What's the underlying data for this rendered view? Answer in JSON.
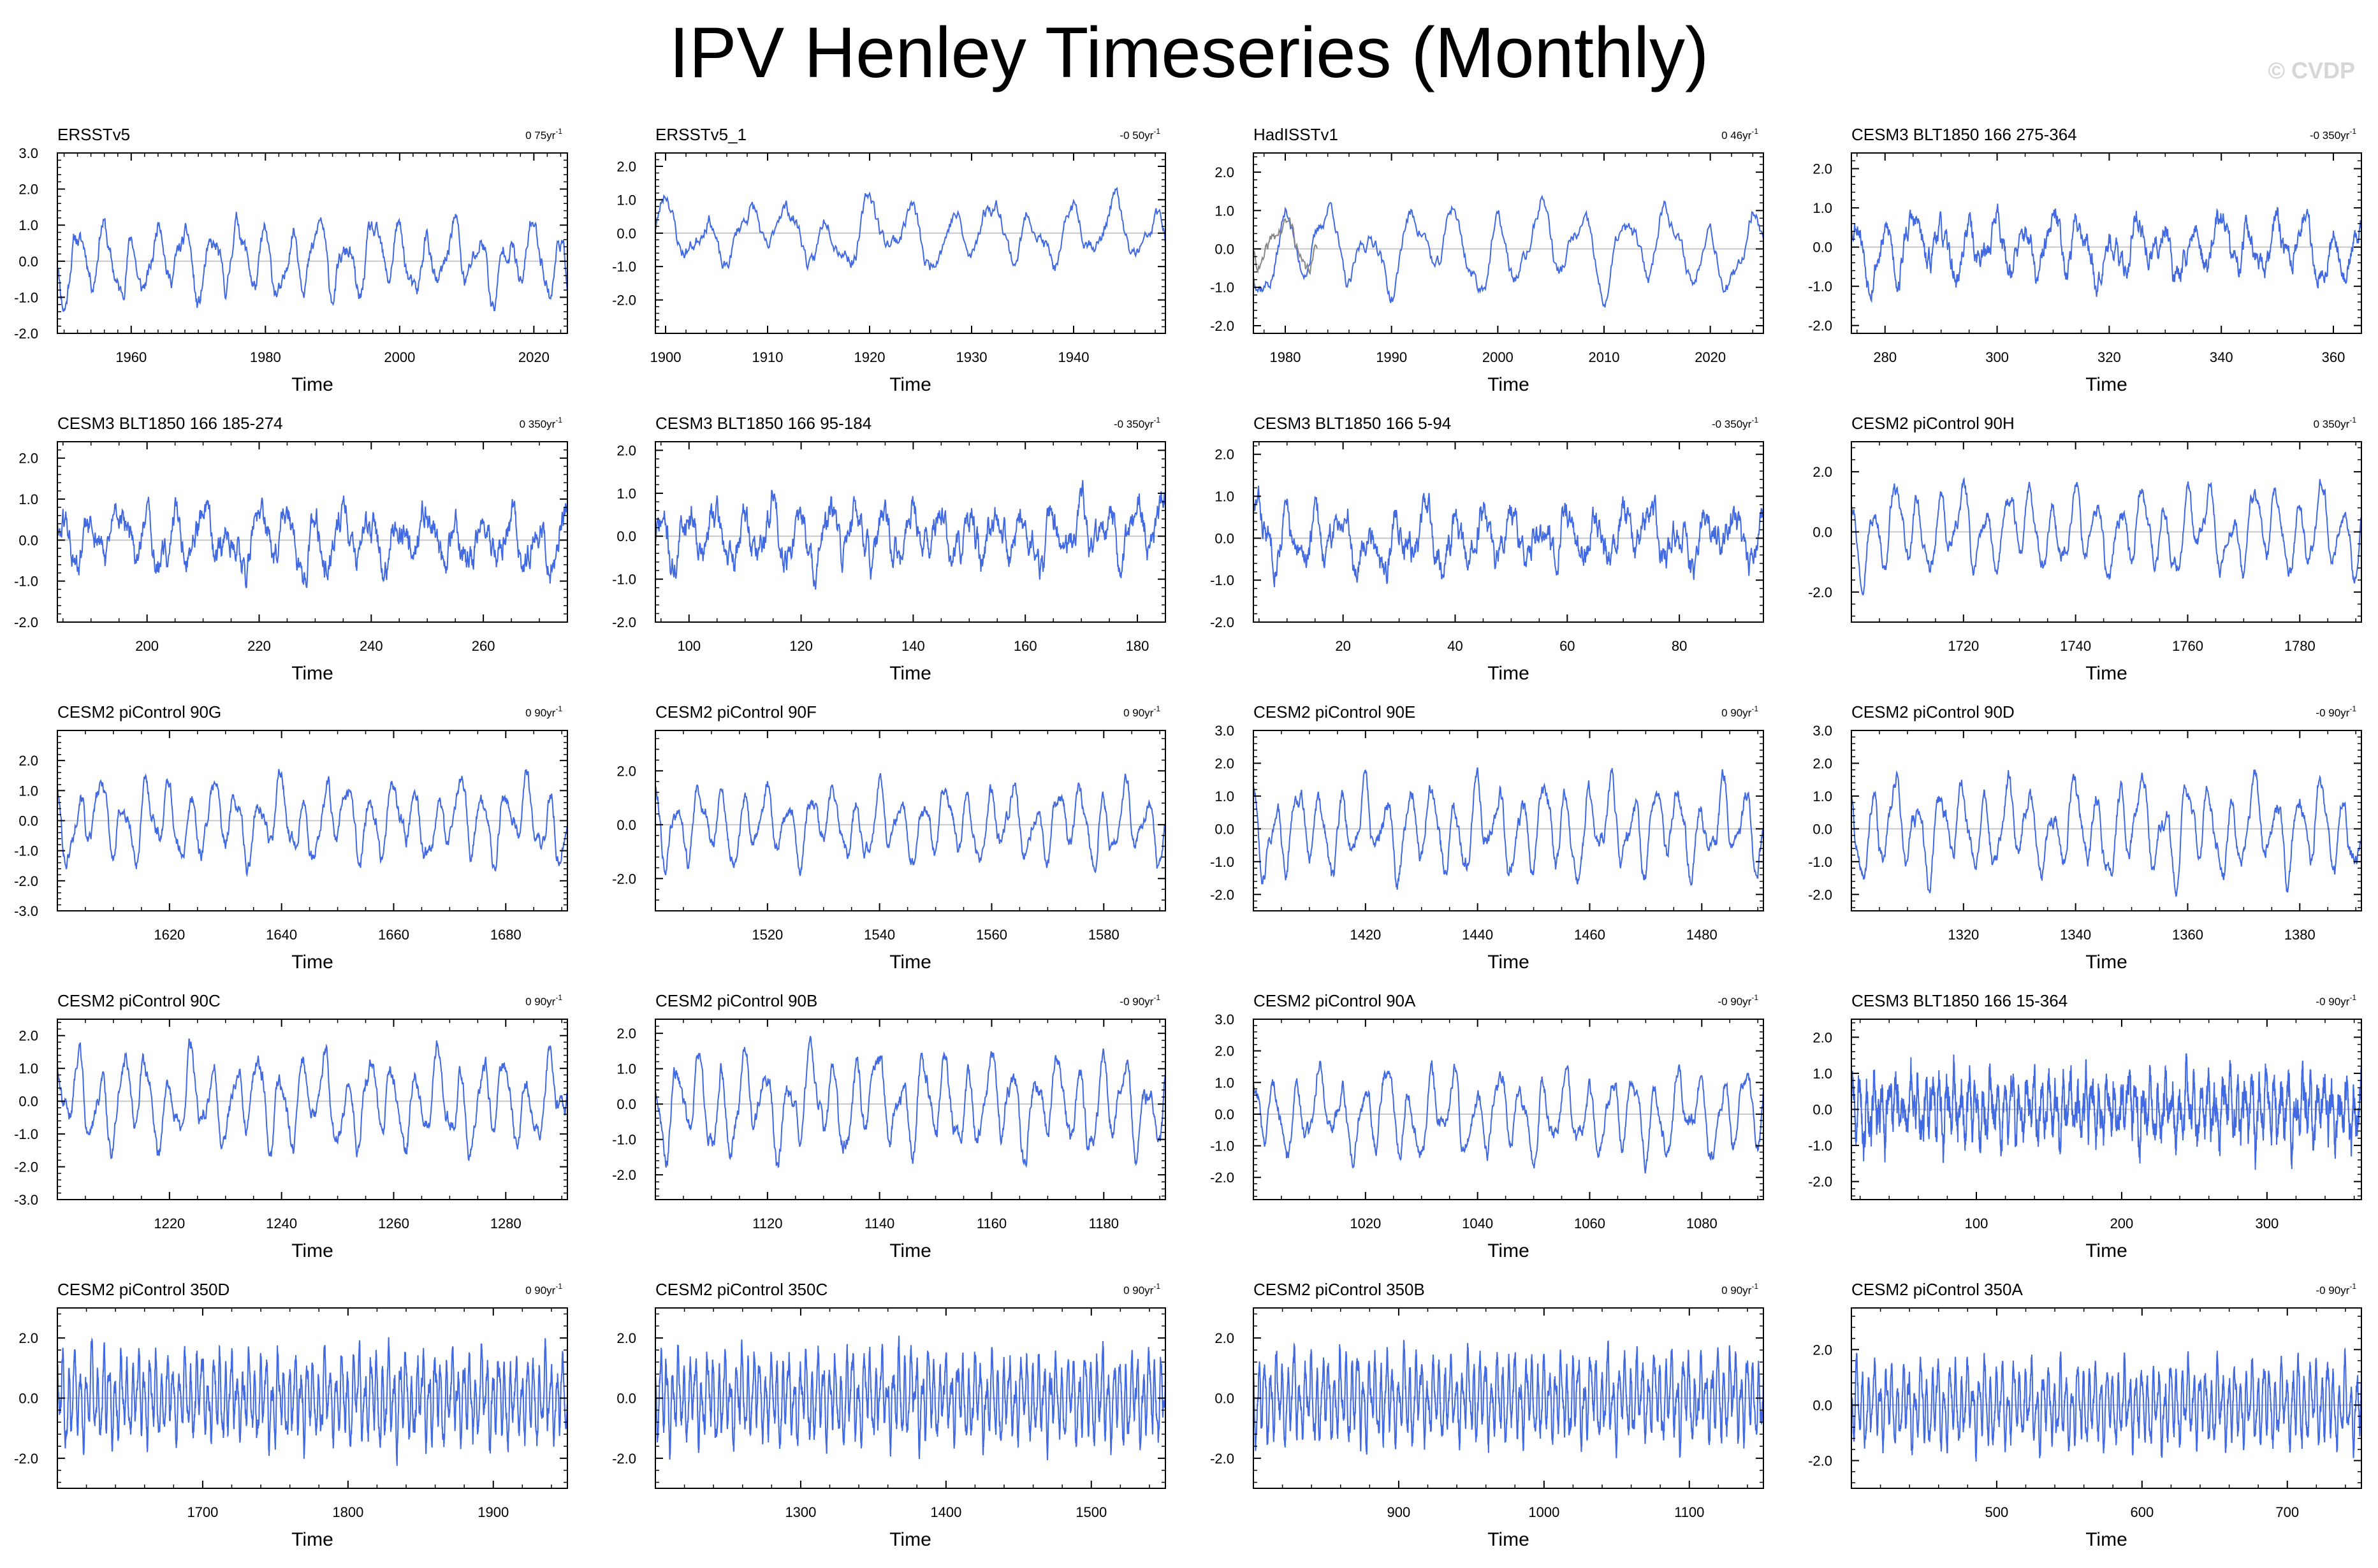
{
  "title": "IPV Henley Timeseries (Monthly)",
  "watermark": "© CVDP",
  "colors": {
    "line": "#4169e1",
    "obs_extra": "#888888",
    "zero": "#c8c8c8",
    "frame": "#000000"
  },
  "chart_data": [
    {
      "type": "line",
      "title": "ERSSTv5",
      "trend": "0 75yr",
      "xlabel": "Time",
      "xlim": [
        1949,
        2025
      ],
      "xticks": [
        1960,
        1980,
        2000,
        2020
      ],
      "ylim": [
        -2.0,
        3.0
      ],
      "yticks": [
        -2.0,
        -1.0,
        0.0,
        1.0,
        2.0,
        3.0
      ],
      "series": [
        {
          "name": "ERSSTv5",
          "seed": 11,
          "amp": 0.75,
          "period": 4,
          "noise": 0.35
        }
      ]
    },
    {
      "type": "line",
      "title": "ERSSTv5_1",
      "trend": "-0 50yr",
      "xlabel": "Time",
      "xlim": [
        1899,
        1949
      ],
      "xticks": [
        1900,
        1910,
        1920,
        1930,
        1940
      ],
      "ylim": [
        -3.0,
        2.4
      ],
      "yticks": [
        -2.0,
        -1.0,
        0.0,
        1.0,
        2.0
      ],
      "series": [
        {
          "name": "ERSSTv5_1",
          "seed": 23,
          "amp": 0.7,
          "period": 4,
          "noise": 0.35
        }
      ]
    },
    {
      "type": "line",
      "title": "HadISSTv1",
      "trend": "0 46yr",
      "xlabel": "Time",
      "xlim": [
        1977,
        2025
      ],
      "xticks": [
        1980,
        1990,
        2000,
        2010,
        2020
      ],
      "ylim": [
        -2.2,
        2.5
      ],
      "yticks": [
        -2.0,
        -1.0,
        0.0,
        1.0,
        2.0
      ],
      "series": [
        {
          "name": "HadISSTv1",
          "seed": 37,
          "amp": 0.8,
          "period": 4,
          "noise": 0.3
        },
        {
          "name": "reference",
          "seed": 41,
          "amp": 0.5,
          "period": 4,
          "noise": 0.3,
          "xrange": [
            1977,
            1983
          ],
          "color": "#888888"
        }
      ]
    },
    {
      "type": "line",
      "title": "CESM3 BLT1850 166 275-364",
      "trend": "-0 350yr",
      "xlabel": "Time",
      "xlim": [
        274,
        365
      ],
      "xticks": [
        280,
        300,
        320,
        340,
        360
      ],
      "ylim": [
        -2.2,
        2.4
      ],
      "yticks": [
        -2.0,
        -1.0,
        0.0,
        1.0,
        2.0
      ],
      "series": [
        {
          "name": "CESM3 BLT1850 166 275-364",
          "seed": 53,
          "amp": 0.55,
          "period": 5,
          "noise": 0.45
        }
      ]
    },
    {
      "type": "line",
      "title": "CESM3 BLT1850 166 185-274",
      "trend": "0 350yr",
      "xlabel": "Time",
      "xlim": [
        184,
        275
      ],
      "xticks": [
        200,
        220,
        240,
        260
      ],
      "ylim": [
        -2.0,
        2.4
      ],
      "yticks": [
        -2.0,
        -1.0,
        0.0,
        1.0,
        2.0
      ],
      "series": [
        {
          "name": "CESM3 BLT1850 166 185-274",
          "seed": 61,
          "amp": 0.5,
          "period": 5,
          "noise": 0.5
        }
      ]
    },
    {
      "type": "line",
      "title": "CESM3 BLT1850 166 95-184",
      "trend": "-0 350yr",
      "xlabel": "Time",
      "xlim": [
        94,
        185
      ],
      "xticks": [
        100,
        120,
        140,
        160,
        180
      ],
      "ylim": [
        -2.0,
        2.2
      ],
      "yticks": [
        -2.0,
        -1.0,
        0.0,
        1.0,
        2.0
      ],
      "series": [
        {
          "name": "CESM3 BLT1850 166 95-184",
          "seed": 71,
          "amp": 0.5,
          "period": 5,
          "noise": 0.5
        }
      ]
    },
    {
      "type": "line",
      "title": "CESM3 BLT1850 166 5-94",
      "trend": "-0 350yr",
      "xlabel": "Time",
      "xlim": [
        4,
        95
      ],
      "xticks": [
        20,
        40,
        60,
        80
      ],
      "ylim": [
        -2.0,
        2.3
      ],
      "yticks": [
        -2.0,
        -1.0,
        0.0,
        1.0,
        2.0
      ],
      "series": [
        {
          "name": "CESM3 BLT1850 166 5-94",
          "seed": 83,
          "amp": 0.5,
          "period": 5,
          "noise": 0.5
        }
      ]
    },
    {
      "type": "line",
      "title": "CESM2 piControl 90H",
      "trend": "0 350yr",
      "xlabel": "Time",
      "xlim": [
        1700,
        1791
      ],
      "xticks": [
        1720,
        1740,
        1760,
        1780
      ],
      "ylim": [
        -3.0,
        3.0
      ],
      "yticks": [
        -2.0,
        0.0,
        2.0
      ],
      "series": [
        {
          "name": "CESM2 piControl 90H",
          "seed": 97,
          "amp": 1.0,
          "period": 4,
          "noise": 0.35
        }
      ]
    },
    {
      "type": "line",
      "title": "CESM2 piControl 90G",
      "trend": "0 90yr",
      "xlabel": "Time",
      "xlim": [
        1600,
        1691
      ],
      "xticks": [
        1620,
        1640,
        1660,
        1680
      ],
      "ylim": [
        -3.0,
        3.0
      ],
      "yticks": [
        -3.0,
        -2.0,
        -1.0,
        0.0,
        1.0,
        2.0
      ],
      "series": [
        {
          "name": "CESM2 piControl 90G",
          "seed": 101,
          "amp": 0.95,
          "period": 4,
          "noise": 0.35
        }
      ]
    },
    {
      "type": "line",
      "title": "CESM2 piControl 90F",
      "trend": "0 90yr",
      "xlabel": "Time",
      "xlim": [
        1500,
        1591
      ],
      "xticks": [
        1520,
        1540,
        1560,
        1580
      ],
      "ylim": [
        -3.2,
        3.5
      ],
      "yticks": [
        -2.0,
        0.0,
        2.0
      ],
      "series": [
        {
          "name": "CESM2 piControl 90F",
          "seed": 113,
          "amp": 1.0,
          "period": 4,
          "noise": 0.35
        }
      ]
    },
    {
      "type": "line",
      "title": "CESM2 piControl 90E",
      "trend": "0 90yr",
      "xlabel": "Time",
      "xlim": [
        1400,
        1491
      ],
      "xticks": [
        1420,
        1440,
        1460,
        1480
      ],
      "ylim": [
        -2.5,
        3.0
      ],
      "yticks": [
        -2.0,
        -1.0,
        0.0,
        1.0,
        2.0,
        3.0
      ],
      "series": [
        {
          "name": "CESM2 piControl 90E",
          "seed": 127,
          "amp": 1.0,
          "period": 4,
          "noise": 0.35
        }
      ]
    },
    {
      "type": "line",
      "title": "CESM2 piControl 90D",
      "trend": "-0 90yr",
      "xlabel": "Time",
      "xlim": [
        1300,
        1391
      ],
      "xticks": [
        1320,
        1340,
        1360,
        1380
      ],
      "ylim": [
        -2.5,
        3.0
      ],
      "yticks": [
        -2.0,
        -1.0,
        0.0,
        1.0,
        2.0,
        3.0
      ],
      "series": [
        {
          "name": "CESM2 piControl 90D",
          "seed": 131,
          "amp": 1.0,
          "period": 4,
          "noise": 0.35
        }
      ]
    },
    {
      "type": "line",
      "title": "CESM2 piControl 90C",
      "trend": "0 90yr",
      "xlabel": "Time",
      "xlim": [
        1200,
        1291
      ],
      "xticks": [
        1220,
        1240,
        1260,
        1280
      ],
      "ylim": [
        -3.0,
        2.5
      ],
      "yticks": [
        -3.0,
        -2.0,
        -1.0,
        0.0,
        1.0,
        2.0
      ],
      "series": [
        {
          "name": "CESM2 piControl 90C",
          "seed": 139,
          "amp": 1.0,
          "period": 4,
          "noise": 0.35
        }
      ]
    },
    {
      "type": "line",
      "title": "CESM2 piControl 90B",
      "trend": "-0 90yr",
      "xlabel": "Time",
      "xlim": [
        1100,
        1191
      ],
      "xticks": [
        1120,
        1140,
        1160,
        1180
      ],
      "ylim": [
        -2.7,
        2.4
      ],
      "yticks": [
        -2.0,
        -1.0,
        0.0,
        1.0,
        2.0
      ],
      "series": [
        {
          "name": "CESM2 piControl 90B",
          "seed": 149,
          "amp": 1.0,
          "period": 4,
          "noise": 0.35
        }
      ]
    },
    {
      "type": "line",
      "title": "CESM2 piControl 90A",
      "trend": "-0 90yr",
      "xlabel": "Time",
      "xlim": [
        1000,
        1091
      ],
      "xticks": [
        1020,
        1040,
        1060,
        1080
      ],
      "ylim": [
        -2.7,
        3.0
      ],
      "yticks": [
        -2.0,
        -1.0,
        0.0,
        1.0,
        2.0,
        3.0
      ],
      "series": [
        {
          "name": "CESM2 piControl 90A",
          "seed": 157,
          "amp": 1.0,
          "period": 4,
          "noise": 0.35
        }
      ]
    },
    {
      "type": "line",
      "title": "CESM3 BLT1850 166 15-364",
      "trend": "-0 90yr",
      "xlabel": "Time",
      "xlim": [
        14,
        365
      ],
      "xticks": [
        100,
        200,
        300
      ],
      "ylim": [
        -2.5,
        2.5
      ],
      "yticks": [
        -2.0,
        -1.0,
        0.0,
        1.0,
        2.0
      ],
      "series": [
        {
          "name": "CESM3 BLT1850 166 15-364",
          "seed": 163,
          "amp": 0.6,
          "period": 5,
          "noise": 0.55
        }
      ]
    },
    {
      "type": "line",
      "title": "CESM2 piControl 350D",
      "trend": "0 90yr",
      "xlabel": "Time",
      "xlim": [
        1600,
        1951
      ],
      "xticks": [
        1700,
        1800,
        1900
      ],
      "ylim": [
        -3.0,
        3.0
      ],
      "yticks": [
        -2.0,
        0.0,
        2.0
      ],
      "series": [
        {
          "name": "CESM2 piControl 350D",
          "seed": 173,
          "amp": 1.0,
          "period": 4,
          "noise": 0.4
        }
      ]
    },
    {
      "type": "line",
      "title": "CESM2 piControl 350C",
      "trend": "0 90yr",
      "xlabel": "Time",
      "xlim": [
        1200,
        1551
      ],
      "xticks": [
        1300,
        1400,
        1500
      ],
      "ylim": [
        -3.0,
        3.0
      ],
      "yticks": [
        -2.0,
        0.0,
        2.0
      ],
      "series": [
        {
          "name": "CESM2 piControl 350C",
          "seed": 181,
          "amp": 1.0,
          "period": 4,
          "noise": 0.4
        }
      ]
    },
    {
      "type": "line",
      "title": "CESM2 piControl 350B",
      "trend": "0 90yr",
      "xlabel": "Time",
      "xlim": [
        800,
        1151
      ],
      "xticks": [
        900,
        1000,
        1100
      ],
      "ylim": [
        -3.0,
        3.0
      ],
      "yticks": [
        -2.0,
        0.0,
        2.0
      ],
      "series": [
        {
          "name": "CESM2 piControl 350B",
          "seed": 191,
          "amp": 1.0,
          "period": 4,
          "noise": 0.4
        }
      ]
    },
    {
      "type": "line",
      "title": "CESM2 piControl 350A",
      "trend": "-0 90yr",
      "xlabel": "Time",
      "xlim": [
        400,
        751
      ],
      "xticks": [
        500,
        600,
        700
      ],
      "ylim": [
        -3.0,
        3.5
      ],
      "yticks": [
        -2.0,
        0.0,
        2.0
      ],
      "series": [
        {
          "name": "CESM2 piControl 350A",
          "seed": 193,
          "amp": 1.0,
          "period": 4,
          "noise": 0.4
        }
      ]
    }
  ]
}
